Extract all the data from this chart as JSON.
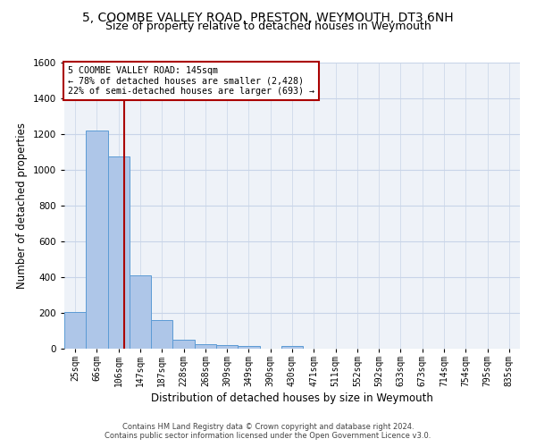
{
  "title1": "5, COOMBE VALLEY ROAD, PRESTON, WEYMOUTH, DT3 6NH",
  "title2": "Size of property relative to detached houses in Weymouth",
  "xlabel": "Distribution of detached houses by size in Weymouth",
  "ylabel": "Number of detached properties",
  "categories": [
    "25sqm",
    "66sqm",
    "106sqm",
    "147sqm",
    "187sqm",
    "228sqm",
    "268sqm",
    "309sqm",
    "349sqm",
    "390sqm",
    "430sqm",
    "471sqm",
    "511sqm",
    "552sqm",
    "592sqm",
    "633sqm",
    "673sqm",
    "714sqm",
    "754sqm",
    "795sqm",
    "835sqm"
  ],
  "values": [
    205,
    1220,
    1075,
    410,
    160,
    50,
    25,
    20,
    15,
    0,
    15,
    0,
    0,
    0,
    0,
    0,
    0,
    0,
    0,
    0,
    0
  ],
  "bar_color": "#aec6e8",
  "bar_edge_color": "#5b9bd5",
  "grid_color": "#c8d4e8",
  "bg_color": "#eef2f8",
  "vline_x": 2.25,
  "vline_color": "#aa0000",
  "annotation_line1": "5 COOMBE VALLEY ROAD: 145sqm",
  "annotation_line2": "← 78% of detached houses are smaller (2,428)",
  "annotation_line3": "22% of semi-detached houses are larger (693) →",
  "ylim": [
    0,
    1600
  ],
  "yticks": [
    0,
    200,
    400,
    600,
    800,
    1000,
    1200,
    1400,
    1600
  ],
  "footer1": "Contains HM Land Registry data © Crown copyright and database right 2024.",
  "footer2": "Contains public sector information licensed under the Open Government Licence v3.0."
}
